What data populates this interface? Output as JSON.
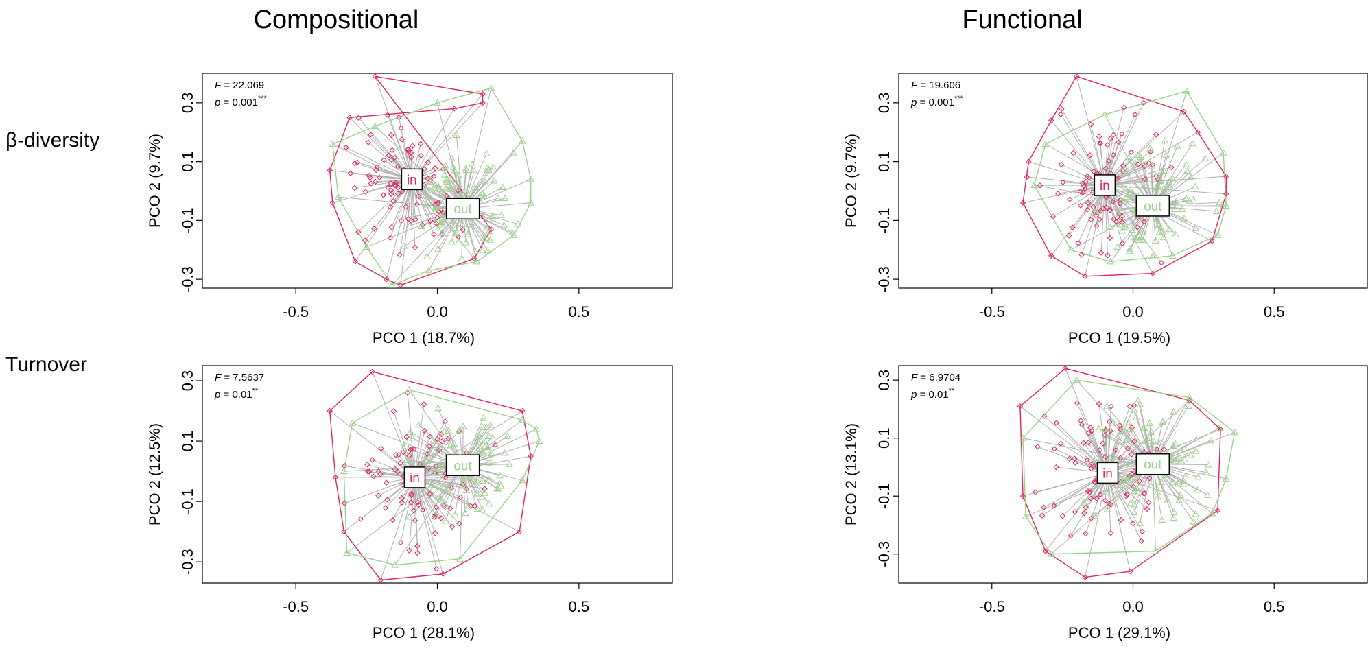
{
  "titles": {
    "left": "Compositional",
    "right": "Functional"
  },
  "row_labels": {
    "top": "β-diversity",
    "bottom": "Turnover"
  },
  "colors": {
    "in": "#e0245e",
    "out": "#9bd18a",
    "spokes": "#b0b0b0",
    "frame": "#000000"
  },
  "chart_data": [
    {
      "type": "scatter",
      "id": "comp-beta",
      "xlabel": "PCO 1 (18.7%)",
      "ylabel": "PCO 2 (9.7%)",
      "xlim": [
        -0.83,
        0.83
      ],
      "ylim": [
        -0.33,
        0.4
      ],
      "xticks": [
        "-0.5",
        "0.0",
        "0.5"
      ],
      "yticks": [
        "0.3",
        "0.1",
        "-0.1",
        "-0.3"
      ],
      "stats": {
        "f_label": "F",
        "f_value": "= 22.069",
        "p_label": "p",
        "p_value": "= 0.001",
        "sig": "***"
      },
      "groups": [
        {
          "name": "in",
          "centroid": [
            -0.09,
            0.04
          ],
          "spread": [
            0.14,
            0.16
          ],
          "hull": [
            [
              -0.22,
              0.39
            ],
            [
              0.16,
              0.33
            ],
            [
              0.16,
              0.3
            ],
            [
              0.06,
              0.28
            ],
            [
              -0.31,
              0.25
            ],
            [
              -0.38,
              0.07
            ],
            [
              -0.37,
              -0.04
            ],
            [
              -0.29,
              -0.24
            ],
            [
              -0.18,
              -0.3
            ],
            [
              -0.13,
              -0.32
            ],
            [
              0.13,
              -0.23
            ],
            [
              0.19,
              -0.13
            ]
          ]
        },
        {
          "name": "out",
          "centroid": [
            0.09,
            -0.06
          ],
          "spread": [
            0.14,
            0.14
          ],
          "hull": [
            [
              0.19,
              0.35
            ],
            [
              0.3,
              0.17
            ],
            [
              0.33,
              0.04
            ],
            [
              0.33,
              -0.04
            ],
            [
              0.27,
              -0.15
            ],
            [
              0.14,
              -0.24
            ],
            [
              -0.03,
              -0.27
            ],
            [
              -0.16,
              -0.32
            ],
            [
              -0.25,
              -0.19
            ],
            [
              -0.35,
              -0.02
            ],
            [
              -0.37,
              0.16
            ],
            [
              -0.22,
              0.22
            ],
            [
              0.0,
              0.3
            ]
          ]
        }
      ]
    },
    {
      "type": "scatter",
      "id": "func-beta",
      "xlabel": "PCO 1 (19.5%)",
      "ylabel": "PCO 2 (9.7%)",
      "xlim": [
        -0.83,
        0.83
      ],
      "ylim": [
        -0.33,
        0.4
      ],
      "xticks": [
        "-0.5",
        "0.0",
        "0.5"
      ],
      "yticks": [
        "0.3",
        "0.1",
        "-0.1",
        "-0.3"
      ],
      "stats": {
        "f_label": "F",
        "f_value": "= 19.606",
        "p_label": "p",
        "p_value": "= 0.001",
        "sig": "***"
      },
      "groups": [
        {
          "name": "in",
          "centroid": [
            -0.1,
            0.02
          ],
          "spread": [
            0.14,
            0.16
          ],
          "hull": [
            [
              -0.2,
              0.39
            ],
            [
              0.18,
              0.27
            ],
            [
              0.23,
              0.2
            ],
            [
              0.33,
              0.05
            ],
            [
              0.33,
              -0.01
            ],
            [
              0.28,
              -0.17
            ],
            [
              0.07,
              -0.28
            ],
            [
              -0.17,
              -0.29
            ],
            [
              -0.29,
              -0.22
            ],
            [
              -0.39,
              -0.04
            ],
            [
              -0.37,
              0.1
            ],
            [
              -0.29,
              0.24
            ]
          ]
        },
        {
          "name": "out",
          "centroid": [
            0.07,
            -0.05
          ],
          "spread": [
            0.14,
            0.14
          ],
          "hull": [
            [
              0.19,
              0.34
            ],
            [
              0.32,
              0.13
            ],
            [
              0.33,
              -0.05
            ],
            [
              0.3,
              -0.15
            ],
            [
              0.14,
              -0.22
            ],
            [
              -0.08,
              -0.24
            ],
            [
              -0.22,
              -0.2
            ],
            [
              -0.35,
              0.02
            ],
            [
              -0.31,
              0.16
            ],
            [
              -0.1,
              0.26
            ]
          ]
        }
      ]
    },
    {
      "type": "scatter",
      "id": "comp-turn",
      "xlabel": "PCO 1 (28.1%)",
      "ylabel": "PCO 2 (12.5%)",
      "xlim": [
        -0.83,
        0.83
      ],
      "ylim": [
        -0.37,
        0.35
      ],
      "xticks": [
        "-0.5",
        "0.0",
        "0.5"
      ],
      "yticks": [
        "0.3",
        "0.1",
        "-0.1",
        "-0.3"
      ],
      "stats": {
        "f_label": "F",
        "f_value": "= 7.5637",
        "p_label": "p",
        "p_value": "= 0.01",
        "sig": "**"
      },
      "groups": [
        {
          "name": "in",
          "centroid": [
            -0.08,
            -0.02
          ],
          "spread": [
            0.15,
            0.15
          ],
          "hull": [
            [
              -0.23,
              0.33
            ],
            [
              0.3,
              0.2
            ],
            [
              0.33,
              0.05
            ],
            [
              0.29,
              -0.2
            ],
            [
              0.02,
              -0.34
            ],
            [
              -0.2,
              -0.36
            ],
            [
              -0.33,
              -0.2
            ],
            [
              -0.36,
              -0.02
            ],
            [
              -0.38,
              0.2
            ]
          ]
        },
        {
          "name": "out",
          "centroid": [
            0.09,
            0.02
          ],
          "spread": [
            0.14,
            0.13
          ],
          "hull": [
            [
              -0.1,
              0.27
            ],
            [
              0.3,
              0.17
            ],
            [
              0.35,
              0.14
            ],
            [
              0.36,
              0.1
            ],
            [
              0.3,
              -0.03
            ],
            [
              0.08,
              -0.29
            ],
            [
              -0.15,
              -0.31
            ],
            [
              -0.32,
              -0.27
            ],
            [
              -0.33,
              0.0
            ],
            [
              -0.3,
              0.16
            ]
          ]
        }
      ]
    },
    {
      "type": "scatter",
      "id": "func-turn",
      "xlabel": "PCO 1 (29.1%)",
      "ylabel": "PCO 2 (13.1%)",
      "xlim": [
        -0.83,
        0.83
      ],
      "ylim": [
        -0.4,
        0.35
      ],
      "xticks": [
        "-0.5",
        "0.0",
        "0.5"
      ],
      "yticks": [
        "0.3",
        "0.1",
        "-0.1",
        "-0.3"
      ],
      "stats": {
        "f_label": "F",
        "f_value": "= 6.9704",
        "p_label": "p",
        "p_value": "= 0.01",
        "sig": "**"
      },
      "groups": [
        {
          "name": "in",
          "centroid": [
            -0.09,
            -0.02
          ],
          "spread": [
            0.15,
            0.16
          ],
          "hull": [
            [
              -0.24,
              0.34
            ],
            [
              0.2,
              0.23
            ],
            [
              0.31,
              0.13
            ],
            [
              0.3,
              -0.15
            ],
            [
              -0.01,
              -0.36
            ],
            [
              -0.17,
              -0.38
            ],
            [
              -0.31,
              -0.29
            ],
            [
              -0.39,
              -0.1
            ],
            [
              -0.4,
              0.21
            ]
          ]
        },
        {
          "name": "out",
          "centroid": [
            0.07,
            0.01
          ],
          "spread": [
            0.14,
            0.14
          ],
          "hull": [
            [
              -0.2,
              0.3
            ],
            [
              0.2,
              0.24
            ],
            [
              0.36,
              0.12
            ],
            [
              0.33,
              -0.04
            ],
            [
              0.28,
              -0.16
            ],
            [
              0.08,
              -0.29
            ],
            [
              -0.29,
              -0.3
            ],
            [
              -0.38,
              -0.17
            ],
            [
              -0.39,
              0.1
            ]
          ]
        }
      ]
    }
  ]
}
